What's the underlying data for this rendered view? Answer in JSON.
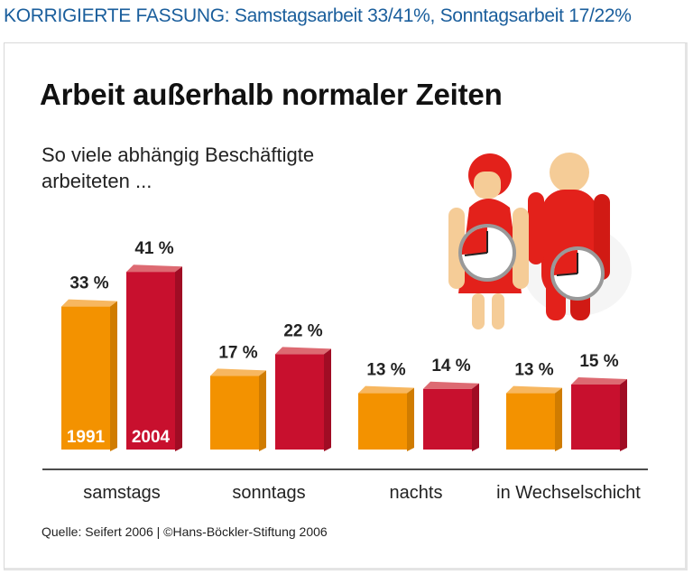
{
  "correction_note": "KORRIGIERTE FASSUNG: Samstagsarbeit 33/41%, Sonntagsarbeit 17/22%",
  "source": "Quelle: Seifert 2006 | ©Hans-Böckler-Stiftung 2006",
  "chart_data": {
    "type": "bar",
    "title": "Arbeit außerhalb normaler Zeiten",
    "subtitle": "So viele abhängig Beschäftigte arbeiteten ...",
    "categories": [
      "samstags",
      "sonntags",
      "nachts",
      "in Wechselschicht"
    ],
    "series": [
      {
        "name": "1991",
        "values": [
          33,
          17,
          13,
          13
        ],
        "color": "#f39200"
      },
      {
        "name": "2004",
        "values": [
          41,
          22,
          14,
          15
        ],
        "color": "#c8102e"
      }
    ],
    "value_suffix": " %",
    "ylim": [
      0,
      45
    ],
    "grid": false,
    "legend": "inside first bars"
  },
  "illustration": {
    "description_icon": "people-with-clocks-icon",
    "accent": "#e3211b"
  }
}
